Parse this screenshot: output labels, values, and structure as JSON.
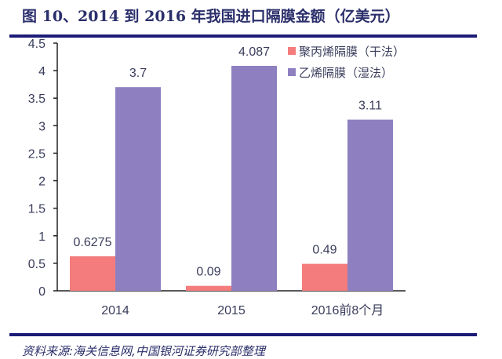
{
  "chart_data": {
    "type": "bar",
    "title": "图 10、2014 到 2016 年我国进口隔膜金额（亿美元）",
    "categories": [
      "2014",
      "2015",
      "2016前8个月"
    ],
    "series": [
      {
        "name": "聚丙烯隔膜（干法）",
        "values": [
          0.6275,
          0.09,
          0.49
        ],
        "color": "#f47c7c"
      },
      {
        "name": "乙烯隔膜（湿法）",
        "values": [
          3.7,
          4.087,
          3.11
        ],
        "color": "#8e80c0"
      }
    ],
    "data_labels": [
      [
        "0.6275",
        "0.09",
        "0.49"
      ],
      [
        "3.7",
        "4.087",
        "3.11"
      ]
    ],
    "yticks": [
      "0",
      "0.5",
      "1",
      "1.5",
      "2",
      "2.5",
      "3",
      "3.5",
      "4",
      "4.5"
    ],
    "ylim": [
      0,
      4.5
    ],
    "grid": false,
    "legend": "top-right",
    "source": "资料来源:海关信息网,中国银河证券研究部整理"
  }
}
